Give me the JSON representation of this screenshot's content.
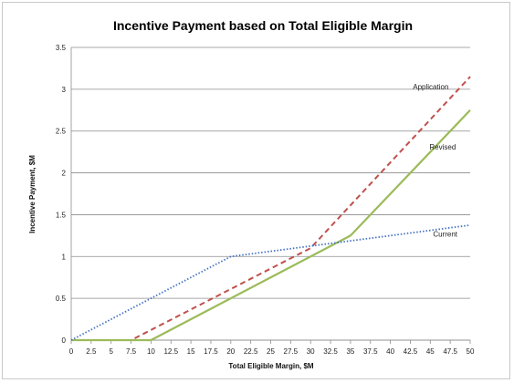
{
  "chart_data": {
    "type": "line",
    "title": "Incentive Payment based on Total Eligible Margin",
    "xlabel": "Total Eligible Margin, $M",
    "ylabel": "Incentive Payment, $M",
    "xlim": [
      0,
      50
    ],
    "ylim": [
      0,
      3.5
    ],
    "x_ticks": [
      "0",
      "2.5",
      "5",
      "7.5",
      "10",
      "12.5",
      "15",
      "17.5",
      "20",
      "22.5",
      "25",
      "27.5",
      "30",
      "32.5",
      "35",
      "37.5",
      "40",
      "42.5",
      "45",
      "47.5",
      "50"
    ],
    "y_ticks": [
      "0",
      "0.5",
      "1",
      "1.5",
      "2",
      "2.5",
      "3",
      "3.5"
    ],
    "grid": "horizontal",
    "legend": "inline-labels",
    "series": [
      {
        "name": "Application",
        "color": "#c0504d",
        "dash": "dashed",
        "x": [
          0,
          7.5,
          30,
          50
        ],
        "y": [
          0,
          0,
          1.1,
          3.15
        ]
      },
      {
        "name": "Revised",
        "color": "#9bbb59",
        "dash": "solid",
        "x": [
          0,
          10,
          35,
          50
        ],
        "y": [
          0,
          0,
          1.25,
          2.75
        ]
      },
      {
        "name": "Current",
        "color": "#4472c4",
        "dash": "dotted",
        "x": [
          0,
          20,
          50
        ],
        "y": [
          0,
          1.0,
          1.375
        ]
      }
    ]
  }
}
